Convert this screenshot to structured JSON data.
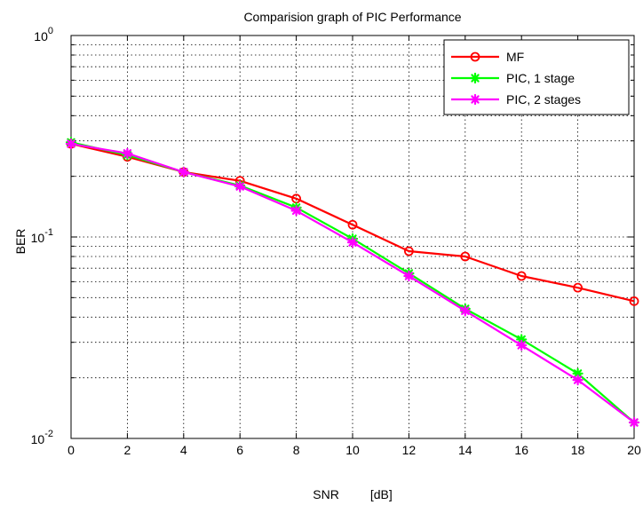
{
  "chart_data": {
    "type": "line",
    "title": "Comparision graph of PIC  Performance",
    "xlabel": "SNR         [dB]",
    "ylabel": "BER",
    "x": [
      0,
      2,
      4,
      6,
      8,
      10,
      12,
      14,
      16,
      18,
      20
    ],
    "xlim": [
      0,
      20
    ],
    "ylim": [
      0.01,
      1
    ],
    "yscale": "log",
    "xticks": [
      0,
      2,
      4,
      6,
      8,
      10,
      12,
      14,
      16,
      18,
      20
    ],
    "yticks": [
      {
        "base": "10",
        "exp": "-2"
      },
      {
        "base": "10",
        "exp": "-1"
      },
      {
        "base": "10",
        "exp": "0"
      }
    ],
    "grid": true,
    "legend_position": "top-right",
    "series": [
      {
        "name": "MF",
        "color": "#ff0000",
        "marker": "circle",
        "values": [
          0.29,
          0.25,
          0.21,
          0.19,
          0.155,
          0.115,
          0.085,
          0.08,
          0.064,
          0.056,
          0.048
        ]
      },
      {
        "name": "PIC, 1 stage",
        "color": "#00ff00",
        "marker": "star",
        "values": [
          0.295,
          0.255,
          0.21,
          0.18,
          0.14,
          0.098,
          0.066,
          0.044,
          0.031,
          0.021,
          0.012
        ]
      },
      {
        "name": "PIC, 2 stages",
        "color": "#ff00ff",
        "marker": "star",
        "values": [
          0.29,
          0.26,
          0.21,
          0.178,
          0.135,
          0.094,
          0.064,
          0.043,
          0.029,
          0.0195,
          0.012
        ]
      }
    ]
  }
}
